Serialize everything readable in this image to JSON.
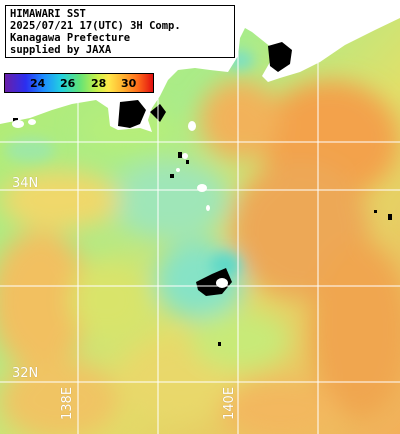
{
  "title": {
    "line1": "HIMAWARI SST",
    "line2": "2025/07/21 17(UTC) 3H Comp.",
    "line3": "Kanagawa Prefecture",
    "line4": "supplied by JAXA"
  },
  "colorbar": {
    "labels": [
      "24",
      "26",
      "28",
      "30"
    ],
    "colors": [
      "#6a1fa8",
      "#2b2ff0",
      "#1e8cff",
      "#22d0e0",
      "#5ee27a",
      "#c6f04a",
      "#ffe84a",
      "#ffb030",
      "#ff6a1a",
      "#e01010"
    ]
  },
  "grid": {
    "lat_labels": [
      "34N",
      "32N"
    ],
    "lon_labels": [
      "138E",
      "140E"
    ]
  },
  "colors": {
    "land": "#ffffff",
    "nodata": "#000000",
    "gridline": "#ffffff",
    "sea_warm": "#f5a94e",
    "sea_mid": "#c9e86a",
    "sea_cool": "#7fe8b0"
  }
}
